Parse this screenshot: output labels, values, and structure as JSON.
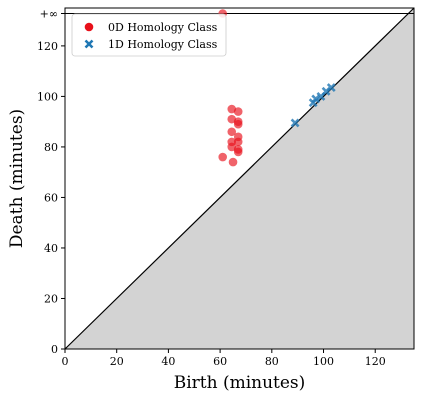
{
  "chart_data": {
    "type": "scatter",
    "title": "",
    "xlabel": "Birth (minutes)",
    "ylabel": "Death (minutes)",
    "xlim": [
      0,
      135
    ],
    "ylim": [
      0,
      135
    ],
    "infinity_death_value": 138,
    "infinity_label": "+∞",
    "x_ticks": [
      0,
      20,
      40,
      60,
      80,
      100,
      120
    ],
    "y_ticks": [
      0,
      20,
      40,
      60,
      80,
      100,
      120
    ],
    "diagonal": true,
    "shade_below_diagonal": true,
    "grid": false,
    "legend_position": "top-left",
    "series": [
      {
        "name": "0D Homology Class",
        "marker": "circle",
        "color": "#e8101a",
        "points": [
          {
            "x": 61,
            "y": 138
          },
          {
            "x": 64.5,
            "y": 95
          },
          {
            "x": 67,
            "y": 94
          },
          {
            "x": 64.5,
            "y": 91
          },
          {
            "x": 67,
            "y": 90
          },
          {
            "x": 67,
            "y": 89
          },
          {
            "x": 64.5,
            "y": 86
          },
          {
            "x": 67,
            "y": 84
          },
          {
            "x": 64.5,
            "y": 82
          },
          {
            "x": 67,
            "y": 82
          },
          {
            "x": 64.5,
            "y": 80
          },
          {
            "x": 67,
            "y": 79
          },
          {
            "x": 67,
            "y": 78
          },
          {
            "x": 61,
            "y": 76
          },
          {
            "x": 65,
            "y": 74
          }
        ]
      },
      {
        "name": "1D Homology Class",
        "marker": "x",
        "color": "#1f77b4",
        "points": [
          {
            "x": 89,
            "y": 89.5
          },
          {
            "x": 96,
            "y": 97.5
          },
          {
            "x": 97,
            "y": 99
          },
          {
            "x": 99,
            "y": 100
          },
          {
            "x": 101,
            "y": 102
          },
          {
            "x": 103,
            "y": 103.5
          }
        ]
      }
    ]
  }
}
